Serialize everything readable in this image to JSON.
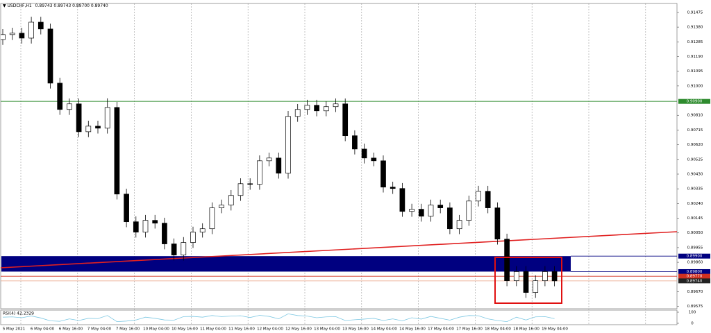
{
  "header": {
    "symbol": "USDCHF,H1",
    "quote": [
      "0.89743",
      "0.89743",
      "0.89700",
      "0.89740"
    ]
  },
  "chart_data": {
    "type": "candlestick",
    "up_color": "#ffffff",
    "down_color": "#000000",
    "outline_color": "#000000",
    "ylim": [
      0.8956,
      0.91533
    ],
    "yticks": [
      0.91475,
      {
        "value": 0.9138,
        "label": "0.91380"
      },
      0.91285,
      {
        "value": 0.9119,
        "label": "0.91190"
      },
      0.91095,
      {
        "value": 0.91,
        "label": "0.91000"
      },
      {
        "value": 0.9081,
        "label": "0.90810"
      },
      0.90715,
      {
        "value": 0.9062,
        "label": "0.90620"
      },
      0.90525,
      {
        "value": 0.9043,
        "label": "0.90430"
      },
      0.90335,
      {
        "value": 0.9024,
        "label": "0.90240"
      },
      0.90145,
      {
        "value": 0.9005,
        "label": "0.90050"
      },
      0.89955,
      {
        "value": 0.8986,
        "label": "0.89860"
      },
      {
        "value": 0.8967,
        "label": "0.89670"
      },
      0.89575
    ],
    "x_labels": [
      "5 May 2021",
      "6 May 04:00",
      "6 May 16:00",
      "7 May 04:00",
      "7 May 16:00",
      "10 May 04:00",
      "10 May 16:00",
      "11 May 04:00",
      "11 May 16:00",
      "12 May 04:00",
      "12 May 16:00",
      "13 May 04:00",
      "13 May 16:00",
      "14 May 04:00",
      "14 May 16:00",
      "17 May 04:00",
      "17 May 16:00",
      "18 May 04:00",
      "18 May 16:00",
      "19 May 04:00"
    ],
    "open": [
      0.913,
      0.91332,
      0.91341,
      0.91309,
      0.91412,
      0.91368,
      0.91018,
      0.90848,
      0.90884,
      0.90704,
      0.9074,
      0.90727,
      0.90861,
      0.90301,
      0.90122,
      0.90055,
      0.90131,
      0.90113,
      0.89979,
      0.89907,
      0.89988,
      0.90055,
      0.90077,
      0.90212,
      0.9023,
      0.90292,
      0.90368,
      0.90364,
      0.90516,
      0.90534,
      0.90436,
      0.90803,
      0.90848,
      0.90875,
      0.90839,
      0.90866,
      0.90884,
      0.90678,
      0.90592,
      0.90534,
      0.90516,
      0.90346,
      0.90337,
      0.90189,
      0.90203,
      0.90158,
      0.9023,
      0.90212,
      0.90077,
      0.90131,
      0.90256,
      0.90319,
      0.90212,
      0.9001,
      0.89741,
      0.898,
      0.89665,
      0.89741,
      0.898
    ],
    "high": [
      0.91367,
      0.91376,
      0.91376,
      0.91447,
      0.91447,
      0.91403,
      0.91053,
      0.90919,
      0.90919,
      0.90775,
      0.90775,
      0.9092,
      0.90896,
      0.90336,
      0.90157,
      0.90166,
      0.90166,
      0.90148,
      0.90014,
      0.90023,
      0.9009,
      0.90112,
      0.90247,
      0.90265,
      0.90327,
      0.90403,
      0.90403,
      0.90551,
      0.90569,
      0.90569,
      0.90838,
      0.90883,
      0.9091,
      0.9091,
      0.90901,
      0.90919,
      0.90919,
      0.90713,
      0.90627,
      0.90569,
      0.90551,
      0.90381,
      0.90372,
      0.90238,
      0.90238,
      0.90265,
      0.90265,
      0.90247,
      0.90166,
      0.90291,
      0.90354,
      0.90354,
      0.90247,
      0.90045,
      0.89835,
      0.89835,
      0.89776,
      0.89835,
      0.89835
    ],
    "low": [
      0.91265,
      0.91297,
      0.91274,
      0.91274,
      0.91333,
      0.90983,
      0.90813,
      0.90813,
      0.90669,
      0.90669,
      0.90692,
      0.90692,
      0.90266,
      0.90087,
      0.9002,
      0.9002,
      0.90078,
      0.89944,
      0.89872,
      0.89872,
      0.89953,
      0.9002,
      0.90042,
      0.90177,
      0.90195,
      0.90257,
      0.90329,
      0.90329,
      0.90481,
      0.90401,
      0.90401,
      0.90768,
      0.90813,
      0.90804,
      0.90804,
      0.90831,
      0.90643,
      0.90557,
      0.90499,
      0.90481,
      0.90311,
      0.90302,
      0.90154,
      0.90154,
      0.90123,
      0.90123,
      0.90177,
      0.90042,
      0.90042,
      0.90096,
      0.90221,
      0.90177,
      0.89975,
      0.89706,
      0.89706,
      0.8963,
      0.8963,
      0.89706,
      0.89705
    ],
    "close": [
      0.91332,
      0.91341,
      0.91309,
      0.91412,
      0.91368,
      0.91018,
      0.90848,
      0.90884,
      0.90704,
      0.9074,
      0.90727,
      0.90861,
      0.90301,
      0.90122,
      0.90055,
      0.90131,
      0.90113,
      0.89979,
      0.89907,
      0.89988,
      0.90055,
      0.90077,
      0.90212,
      0.9023,
      0.90292,
      0.90368,
      0.90364,
      0.90516,
      0.90534,
      0.90436,
      0.90803,
      0.90848,
      0.90875,
      0.90839,
      0.90866,
      0.90884,
      0.90678,
      0.90592,
      0.90534,
      0.90516,
      0.90346,
      0.90337,
      0.90189,
      0.90203,
      0.90158,
      0.9023,
      0.90212,
      0.90077,
      0.90131,
      0.90256,
      0.90319,
      0.90212,
      0.9001,
      0.89741,
      0.898,
      0.89665,
      0.89741,
      0.898,
      0.8974
    ],
    "price_lines": [
      {
        "value": 0.909,
        "label": "0.90900",
        "color": "#2e8b2e"
      },
      {
        "value": 0.899,
        "label": "0.89900",
        "color": "#000080"
      },
      {
        "value": 0.898,
        "label": "0.89800",
        "color": "#000080"
      },
      {
        "value": 0.8977,
        "label": "0.89770",
        "color": "#d03020"
      },
      {
        "value": 0.8974,
        "label": "0.89740",
        "color": "#e8a080"
      }
    ],
    "zone_color": "#000080",
    "rsi": {
      "label": "RSI(4) 42.2329",
      "color": "#7ec8e3",
      "ylim": [
        0,
        100
      ],
      "yticks": [
        0,
        100
      ],
      "values": [
        55,
        58,
        50,
        66,
        48,
        22,
        18,
        40,
        25,
        45,
        42,
        70,
        15,
        20,
        30,
        55,
        45,
        30,
        28,
        60,
        62,
        55,
        70,
        60,
        65,
        68,
        52,
        72,
        62,
        40,
        85,
        70,
        65,
        50,
        58,
        60,
        25,
        32,
        38,
        45,
        25,
        40,
        22,
        50,
        38,
        62,
        45,
        28,
        55,
        70,
        68,
        40,
        25,
        15,
        55,
        30,
        58,
        60,
        42.2329
      ]
    }
  }
}
